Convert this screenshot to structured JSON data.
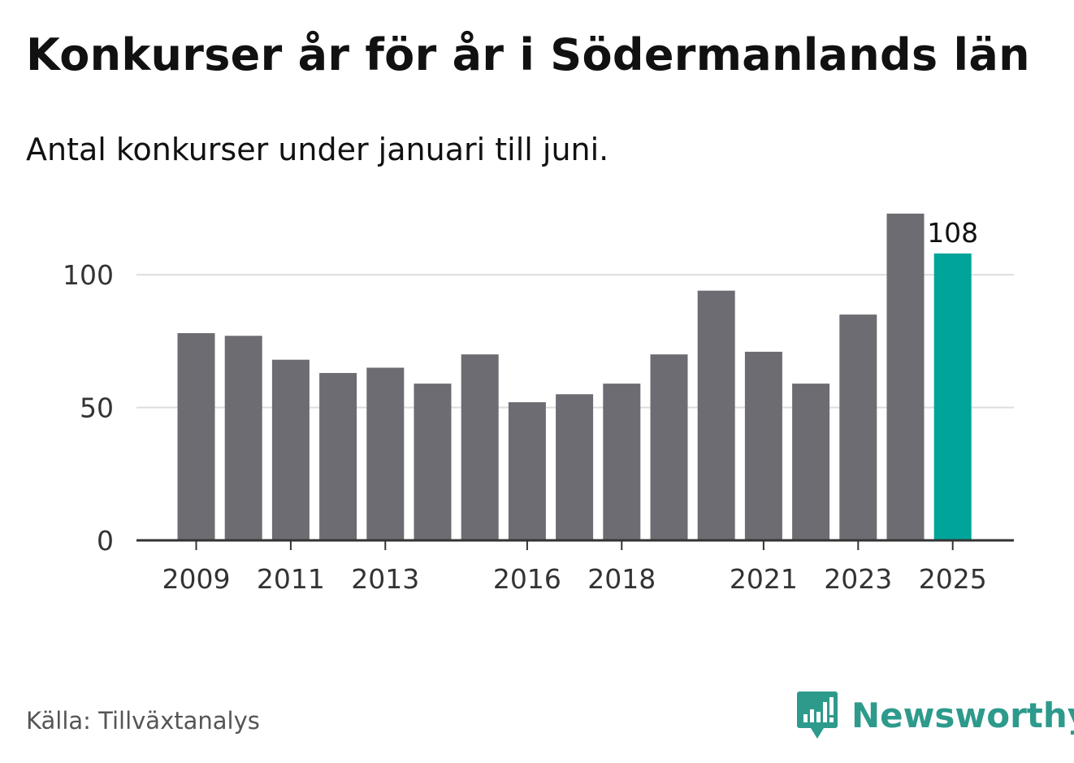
{
  "title": "Konkurser år för år i Södermanlands län",
  "subtitle": "Antal konkurser under januari till juni.",
  "source": "Källa: Tillväxtanalys",
  "brand": {
    "name": "Newsworthy",
    "icon": "newsworthy-logo-icon",
    "color": "#2d9a8c"
  },
  "colors": {
    "bar": "#6d6c72",
    "highlight": "#00a499",
    "grid": "#dddddd",
    "axis": "#333333",
    "text": "#333333"
  },
  "chart_data": {
    "type": "bar",
    "categories": [
      "2009",
      "2010",
      "2011",
      "2012",
      "2013",
      "2014",
      "2015",
      "2016",
      "2017",
      "2018",
      "2019",
      "2020",
      "2021",
      "2022",
      "2023",
      "2024",
      "2025"
    ],
    "values": [
      78,
      77,
      68,
      63,
      65,
      59,
      70,
      52,
      55,
      59,
      70,
      94,
      71,
      59,
      85,
      123,
      108
    ],
    "highlight_category": "2025",
    "data_labels": [
      {
        "category": "2025",
        "text": "108"
      }
    ],
    "x_tick_labels": [
      "2009",
      "2011",
      "2013",
      "2016",
      "2018",
      "2021",
      "2023",
      "2025"
    ],
    "y_ticks": [
      0,
      50,
      100
    ],
    "ylim": [
      0,
      130
    ],
    "xlabel": "",
    "ylabel": "",
    "grid": true,
    "legend": false
  }
}
